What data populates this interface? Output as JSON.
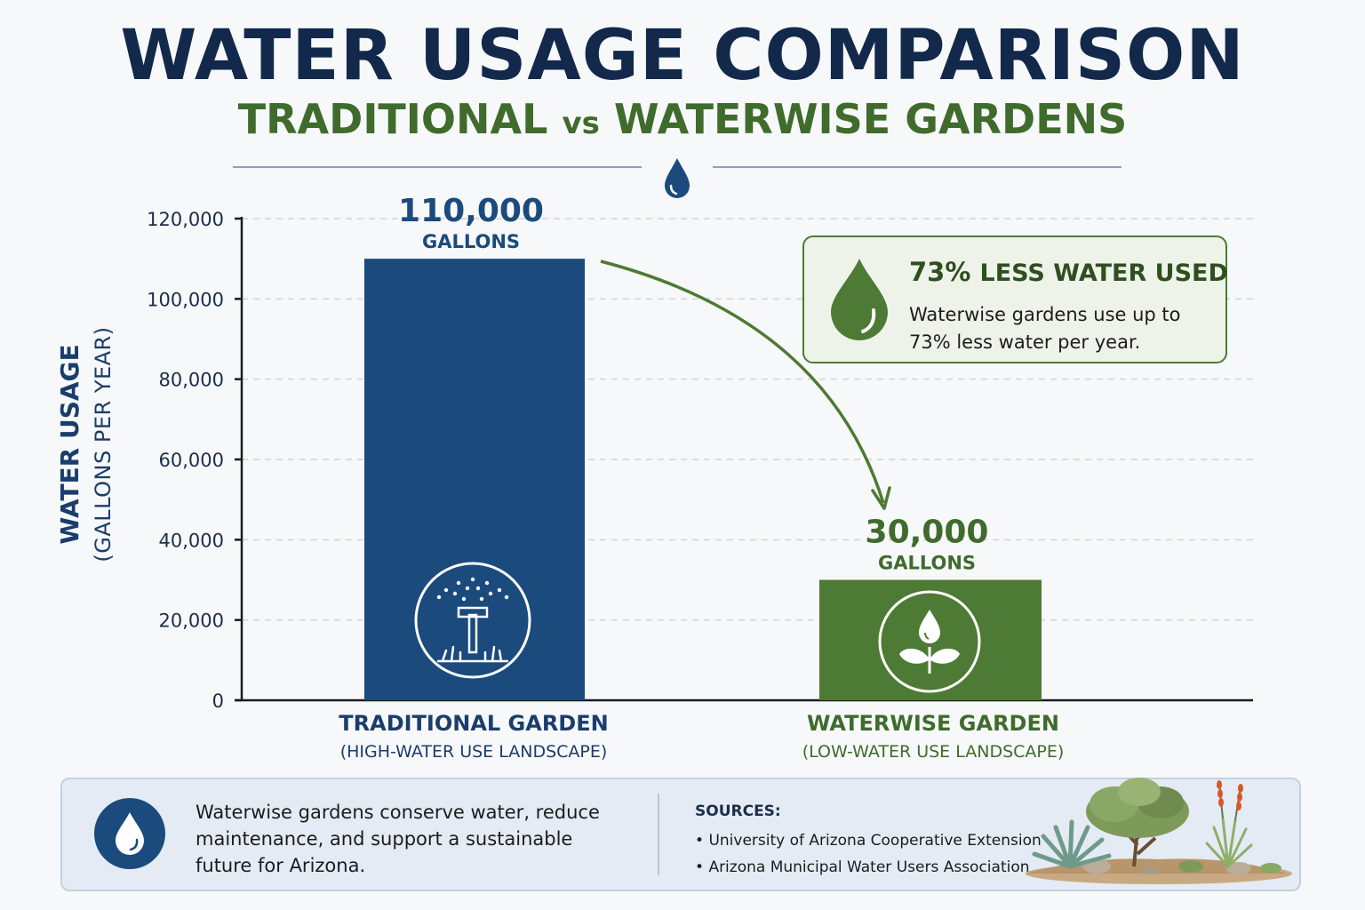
{
  "header": {
    "title": "WATER USAGE COMPARISON",
    "subtitle_left": "TRADITIONAL",
    "subtitle_vs": "vs",
    "subtitle_right": "WATERWISE GARDENS"
  },
  "chart_data": {
    "type": "bar",
    "ylabel": "WATER USAGE",
    "ylabel_sub": "(GALLONS PER YEAR)",
    "ylim": [
      0,
      120000
    ],
    "yticks": [
      0,
      20000,
      40000,
      60000,
      80000,
      100000,
      120000
    ],
    "ytick_labels": [
      "0",
      "20,000",
      "40,000",
      "60,000",
      "80,000",
      "100,000",
      "120,000"
    ],
    "grid": true,
    "bars": [
      {
        "category": "TRADITIONAL GARDEN",
        "category_sub": "(HIGH-WATER USE LANDSCAPE)",
        "value": 110000,
        "value_label": "110,000",
        "unit_label": "GALLONS",
        "color": "#1b4a7d",
        "icon": "sprinkler-icon"
      },
      {
        "category": "WATERWISE GARDEN",
        "category_sub": "(LOW-WATER USE LANDSCAPE)",
        "value": 30000,
        "value_label": "30,000",
        "unit_label": "GALLONS",
        "color": "#4d7a34",
        "icon": "sprout-water-drop-icon"
      }
    ]
  },
  "colors": {
    "navy": "#13294b",
    "blue": "#1b4a7d",
    "green": "#4d7a34",
    "dark_green": "#2e4f1f"
  },
  "callout": {
    "headline_pct": "73%",
    "headline_rest": "LESS WATER USED",
    "body": "Waterwise gardens use up to 73% less water per year.",
    "icon": "water-drop-icon"
  },
  "footer": {
    "message": "Waterwise gardens conserve water, reduce maintenance, and support a sustainable future for Arizona.",
    "sources_title": "SOURCES:",
    "sources": [
      "University of Arizona Cooperative Extension",
      "Arizona Municipal Water Users Association"
    ],
    "icons": [
      "water-drop-icon",
      "desert-landscape-illustration"
    ]
  }
}
